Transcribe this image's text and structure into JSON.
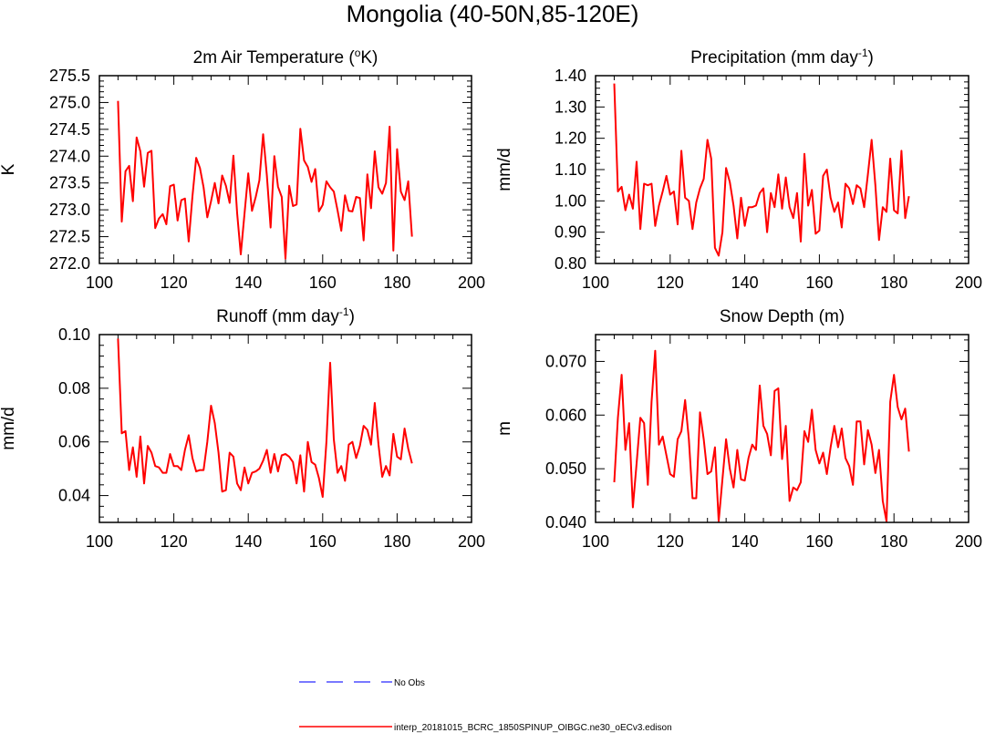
{
  "figure": {
    "title": "Mongolia (40-50N,85-120E)"
  },
  "chart_data": [
    {
      "type": "line",
      "title_prefix": "2m Air Temperature (",
      "title_sup": "o",
      "title_suffix": "K)",
      "ylabel": "K",
      "xlim": [
        100,
        200
      ],
      "ylim": [
        272.0,
        275.5
      ],
      "xticks": [
        100,
        120,
        140,
        160,
        180,
        200
      ],
      "yticks": [
        272.0,
        272.5,
        273.0,
        273.5,
        274.0,
        274.5,
        275.0,
        275.5
      ],
      "ytick_labels": [
        "272.0",
        "272.5",
        "273.0",
        "273.5",
        "274.0",
        "274.5",
        "275.0",
        "275.5"
      ],
      "x_start": 105,
      "series": [
        {
          "color": "#ff0000",
          "values": [
            275.03,
            272.78,
            273.72,
            273.82,
            273.16,
            274.35,
            274.09,
            273.43,
            274.06,
            274.1,
            272.66,
            272.84,
            272.92,
            272.73,
            273.44,
            273.47,
            272.8,
            273.18,
            273.21,
            272.41,
            273.25,
            273.97,
            273.78,
            273.42,
            272.86,
            273.16,
            273.5,
            273.12,
            273.64,
            273.45,
            273.13,
            274.01,
            272.94,
            272.17,
            272.93,
            273.68,
            272.98,
            273.24,
            273.55,
            274.41,
            273.64,
            272.67,
            274.0,
            273.43,
            273.24,
            272.09,
            273.45,
            273.07,
            273.1,
            274.51,
            273.92,
            273.8,
            273.52,
            273.76,
            272.97,
            273.09,
            273.53,
            273.42,
            273.34,
            272.99,
            272.61,
            273.27,
            272.98,
            272.97,
            273.24,
            273.22,
            272.43,
            273.66,
            273.03,
            274.09,
            273.42,
            273.3,
            273.5,
            274.55,
            272.24,
            274.13,
            273.34,
            273.18,
            273.53,
            272.5
          ]
        }
      ]
    },
    {
      "type": "line",
      "title_prefix": "Precipitation (mm day",
      "title_sup": "-1",
      "title_suffix": ")",
      "ylabel": "mm/d",
      "xlim": [
        100,
        200
      ],
      "ylim": [
        0.8,
        1.4
      ],
      "xticks": [
        100,
        120,
        140,
        160,
        180,
        200
      ],
      "yticks": [
        0.8,
        0.9,
        1.0,
        1.1,
        1.2,
        1.3,
        1.4
      ],
      "ytick_labels": [
        "0.80",
        "0.90",
        "1.00",
        "1.10",
        "1.20",
        "1.30",
        "1.40"
      ],
      "x_start": 105,
      "series": [
        {
          "color": "#ff0000",
          "values": [
            1.375,
            1.03,
            1.045,
            0.97,
            1.02,
            0.975,
            1.125,
            0.91,
            1.055,
            1.05,
            1.055,
            0.92,
            0.985,
            1.03,
            1.08,
            1.02,
            1.03,
            0.925,
            1.16,
            1.01,
            1.0,
            0.91,
            0.995,
            1.04,
            1.07,
            1.195,
            1.135,
            0.85,
            0.825,
            0.9,
            1.105,
            1.06,
            0.985,
            0.88,
            1.01,
            0.92,
            0.98,
            0.98,
            0.985,
            1.025,
            1.04,
            0.9,
            1.025,
            0.98,
            1.085,
            0.975,
            1.075,
            0.98,
            0.945,
            1.025,
            0.87,
            1.15,
            0.985,
            1.035,
            0.895,
            0.905,
            1.08,
            1.1,
            1.01,
            0.965,
            0.995,
            0.915,
            1.055,
            1.04,
            0.99,
            1.05,
            1.04,
            0.98,
            1.085,
            1.195,
            1.05,
            0.875,
            0.98,
            0.965,
            1.135,
            0.97,
            0.96,
            1.16,
            0.945,
            1.015
          ]
        }
      ]
    },
    {
      "type": "line",
      "title_prefix": "Runoff (mm day",
      "title_sup": "-1",
      "title_suffix": ")",
      "ylabel": "mm/d",
      "xlim": [
        100,
        200
      ],
      "ylim": [
        0.03,
        0.1
      ],
      "xticks": [
        100,
        120,
        140,
        160,
        180,
        200
      ],
      "yticks": [
        0.04,
        0.06,
        0.08,
        0.1
      ],
      "ytick_labels": [
        "0.04",
        "0.06",
        "0.08",
        "0.10"
      ],
      "x_start": 105,
      "series": [
        {
          "color": "#ff0000",
          "values": [
            0.0985,
            0.0632,
            0.064,
            0.0495,
            0.058,
            0.047,
            0.062,
            0.0445,
            0.0585,
            0.056,
            0.051,
            0.0505,
            0.0485,
            0.0485,
            0.0555,
            0.051,
            0.051,
            0.0495,
            0.057,
            0.0625,
            0.054,
            0.049,
            0.0495,
            0.0495,
            0.06,
            0.0735,
            0.067,
            0.056,
            0.0415,
            0.042,
            0.056,
            0.0545,
            0.0445,
            0.042,
            0.0505,
            0.0445,
            0.0485,
            0.049,
            0.05,
            0.053,
            0.057,
            0.0485,
            0.0555,
            0.049,
            0.055,
            0.0555,
            0.0545,
            0.0525,
            0.0445,
            0.055,
            0.0415,
            0.06,
            0.0525,
            0.0515,
            0.0465,
            0.0395,
            0.06,
            0.0895,
            0.061,
            0.0485,
            0.051,
            0.0455,
            0.059,
            0.06,
            0.054,
            0.0585,
            0.066,
            0.0645,
            0.059,
            0.0745,
            0.059,
            0.047,
            0.051,
            0.0475,
            0.063,
            0.0545,
            0.0535,
            0.065,
            0.0575,
            0.052
          ]
        }
      ]
    },
    {
      "type": "line",
      "title": "Snow Depth (m)",
      "ylabel": "m",
      "xlim": [
        100,
        200
      ],
      "ylim": [
        0.04,
        0.075
      ],
      "xticks": [
        100,
        120,
        140,
        160,
        180,
        200
      ],
      "yticks": [
        0.04,
        0.05,
        0.06,
        0.07
      ],
      "ytick_labels": [
        "0.040",
        "0.050",
        "0.060",
        "0.070"
      ],
      "x_start": 105,
      "series": [
        {
          "color": "#ff0000",
          "values": [
            0.0475,
            0.0595,
            0.0675,
            0.0535,
            0.0585,
            0.0428,
            0.051,
            0.0595,
            0.0585,
            0.047,
            0.0625,
            0.072,
            0.0545,
            0.056,
            0.0525,
            0.049,
            0.0485,
            0.0555,
            0.057,
            0.0628,
            0.0555,
            0.0445,
            0.0445,
            0.0605,
            0.0555,
            0.049,
            0.0495,
            0.054,
            0.0402,
            0.048,
            0.0555,
            0.05,
            0.0465,
            0.0535,
            0.048,
            0.0478,
            0.052,
            0.0545,
            0.0535,
            0.0655,
            0.058,
            0.0565,
            0.0525,
            0.0645,
            0.065,
            0.0518,
            0.058,
            0.044,
            0.0465,
            0.046,
            0.0475,
            0.057,
            0.055,
            0.061,
            0.0535,
            0.051,
            0.053,
            0.049,
            0.054,
            0.058,
            0.054,
            0.0575,
            0.052,
            0.0505,
            0.047,
            0.0588,
            0.0588,
            0.0508,
            0.0572,
            0.0545,
            0.0492,
            0.0535,
            0.044,
            0.0402,
            0.0625,
            0.0675,
            0.0615,
            0.0592,
            0.0612,
            0.0532
          ]
        }
      ]
    }
  ],
  "legend": [
    {
      "label": "No Obs",
      "color": "#4d4dff",
      "dash": true
    },
    {
      "label": "interp_20181015_BCRC_1850SPINUP_OIBGC.ne30_oECv3.edison",
      "color": "#ff0000",
      "dash": false
    }
  ]
}
